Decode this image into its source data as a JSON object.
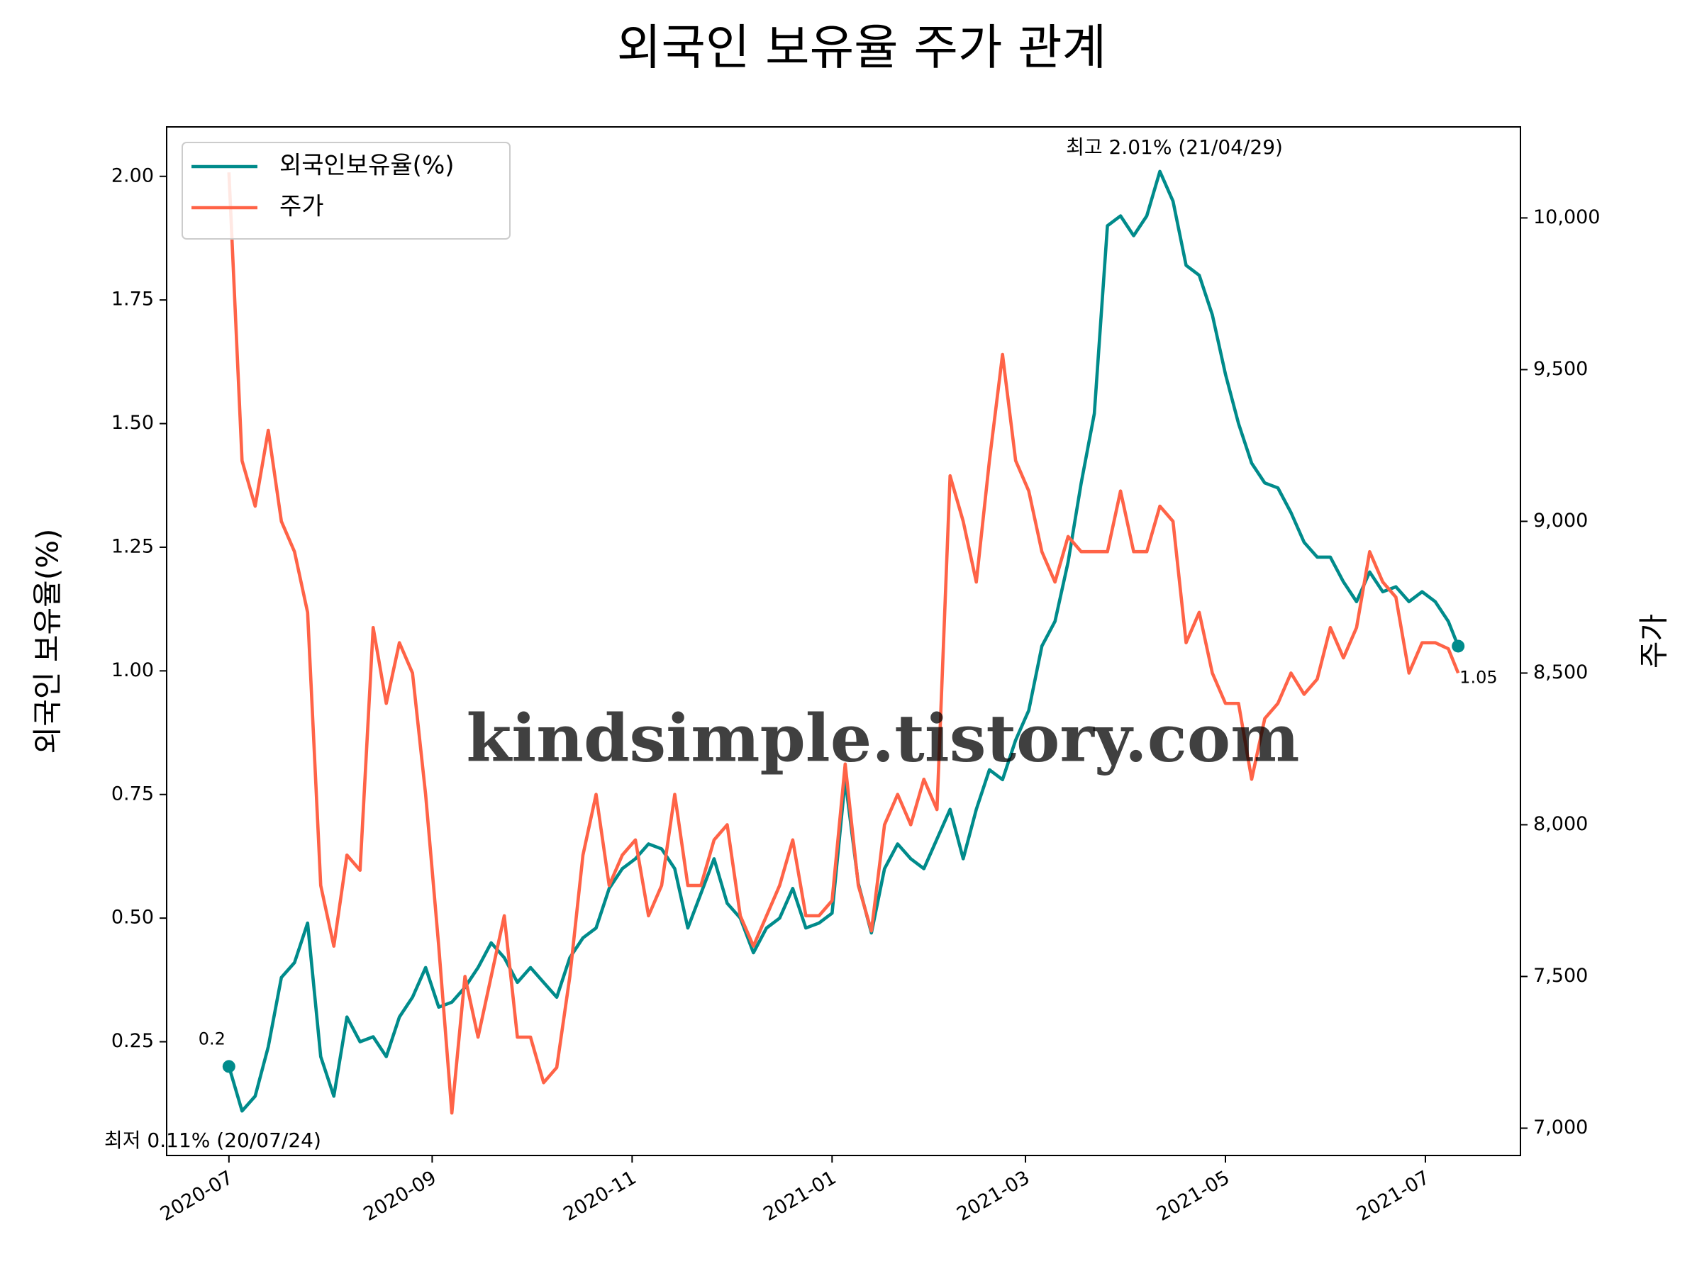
{
  "chart_data": {
    "type": "line",
    "title": "외국인 보유율 주가 관계",
    "ylabel": "외국인 보유율(%)",
    "y2label": "주가",
    "legend": "upper left",
    "grid": false,
    "x": [
      "2020-07-01",
      "2020-07-05",
      "2020-07-09",
      "2020-07-13",
      "2020-07-17",
      "2020-07-21",
      "2020-07-25",
      "2020-07-29",
      "2020-08-02",
      "2020-08-06",
      "2020-08-10",
      "2020-08-14",
      "2020-08-18",
      "2020-08-22",
      "2020-08-26",
      "2020-08-30",
      "2020-09-03",
      "2020-09-07",
      "2020-09-11",
      "2020-09-15",
      "2020-09-19",
      "2020-09-23",
      "2020-09-27",
      "2020-10-01",
      "2020-10-05",
      "2020-10-09",
      "2020-10-13",
      "2020-10-17",
      "2020-10-21",
      "2020-10-25",
      "2020-10-29",
      "2020-11-02",
      "2020-11-06",
      "2020-11-10",
      "2020-11-14",
      "2020-11-18",
      "2020-11-22",
      "2020-11-26",
      "2020-11-30",
      "2020-12-04",
      "2020-12-08",
      "2020-12-12",
      "2020-12-16",
      "2020-12-20",
      "2020-12-24",
      "2020-12-28",
      "2021-01-01",
      "2021-01-05",
      "2021-01-09",
      "2021-01-13",
      "2021-01-17",
      "2021-01-21",
      "2021-01-25",
      "2021-01-29",
      "2021-02-02",
      "2021-02-06",
      "2021-02-10",
      "2021-02-14",
      "2021-02-18",
      "2021-02-22",
      "2021-02-26",
      "2021-03-02",
      "2021-03-06",
      "2021-03-10",
      "2021-03-14",
      "2021-03-18",
      "2021-03-22",
      "2021-03-26",
      "2021-03-30",
      "2021-04-03",
      "2021-04-07",
      "2021-04-11",
      "2021-04-15",
      "2021-04-19",
      "2021-04-23",
      "2021-04-27",
      "2021-05-01",
      "2021-05-05",
      "2021-05-09",
      "2021-05-13",
      "2021-05-17",
      "2021-05-21",
      "2021-05-25",
      "2021-05-29",
      "2021-06-02",
      "2021-06-06",
      "2021-06-10",
      "2021-06-14",
      "2021-06-18",
      "2021-06-22",
      "2021-06-26",
      "2021-06-30",
      "2021-07-04",
      "2021-07-08",
      "2021-07-11"
    ],
    "xlim": [
      "2020-06-12",
      "2021-07-30"
    ],
    "xticks": [
      "2020-07",
      "2020-09",
      "2020-11",
      "2021-01",
      "2021-03",
      "2021-05",
      "2021-07"
    ],
    "ylim": [
      0.02,
      2.1
    ],
    "yticks": [
      {
        "value": 0.25,
        "label": "0.25"
      },
      {
        "value": 0.5,
        "label": "0.50"
      },
      {
        "value": 0.75,
        "label": "0.75"
      },
      {
        "value": 1,
        "label": "1.00"
      },
      {
        "value": 1.25,
        "label": "1.25"
      },
      {
        "value": 1.5,
        "label": "1.50"
      },
      {
        "value": 1.75,
        "label": "1.75"
      },
      {
        "value": 2,
        "label": "2.00"
      }
    ],
    "y2lim": [
      6910,
      10300
    ],
    "y2ticks": [
      {
        "value": 7000,
        "label": "7,000"
      },
      {
        "value": 7500,
        "label": "7,500"
      },
      {
        "value": 8000,
        "label": "8,000"
      },
      {
        "value": 8500,
        "label": "8,500"
      },
      {
        "value": 9000,
        "label": "9,000"
      },
      {
        "value": 9500,
        "label": "9,500"
      },
      {
        "value": 10000,
        "label": "10,000"
      }
    ],
    "series": [
      {
        "name": "외국인보유율(%)",
        "color": "#008b8b",
        "values": [
          0.2,
          0.11,
          0.14,
          0.24,
          0.38,
          0.41,
          0.49,
          0.22,
          0.14,
          0.3,
          0.25,
          0.26,
          0.22,
          0.3,
          0.34,
          0.4,
          0.32,
          0.33,
          0.36,
          0.4,
          0.45,
          0.42,
          0.37,
          0.4,
          0.37,
          0.34,
          0.42,
          0.46,
          0.48,
          0.56,
          0.6,
          0.62,
          0.65,
          0.64,
          0.6,
          0.48,
          0.55,
          0.62,
          0.53,
          0.5,
          0.43,
          0.48,
          0.5,
          0.56,
          0.48,
          0.49,
          0.51,
          0.78,
          0.57,
          0.47,
          0.6,
          0.65,
          0.62,
          0.6,
          0.66,
          0.72,
          0.62,
          0.72,
          0.8,
          0.78,
          0.86,
          0.92,
          1.05,
          1.1,
          1.22,
          1.38,
          1.52,
          1.9,
          1.92,
          1.88,
          1.92,
          2.01,
          1.95,
          1.82,
          1.8,
          1.72,
          1.6,
          1.5,
          1.42,
          1.38,
          1.37,
          1.32,
          1.26,
          1.23,
          1.23,
          1.18,
          1.14,
          1.2,
          1.16,
          1.17,
          1.14,
          1.16,
          1.14,
          1.1,
          1.05
        ]
      },
      {
        "name": "주가",
        "color": "#ff6347",
        "axis": "y2",
        "values": [
          10150,
          9200,
          9050,
          9300,
          9000,
          8900,
          8700,
          7800,
          7600,
          7900,
          7850,
          8650,
          8400,
          8600,
          8500,
          8100,
          7600,
          7050,
          7500,
          7300,
          7500,
          7700,
          7300,
          7300,
          7150,
          7200,
          7500,
          7900,
          8100,
          7800,
          7900,
          7950,
          7700,
          7800,
          8100,
          7800,
          7800,
          7950,
          8000,
          7700,
          7600,
          7700,
          7800,
          7950,
          7700,
          7700,
          7750,
          8200,
          7800,
          7650,
          8000,
          8100,
          8000,
          8150,
          8050,
          9150,
          9000,
          8800,
          9200,
          9550,
          9200,
          9100,
          8900,
          8800,
          8950,
          8900,
          8900,
          8900,
          9100,
          8900,
          8900,
          9050,
          9000,
          8600,
          8700,
          8500,
          8400,
          8400,
          8150,
          8350,
          8400,
          8500,
          8430,
          8480,
          8650,
          8550,
          8650,
          8900,
          8800,
          8750,
          8500,
          8600,
          8600,
          8580,
          8500
        ]
      }
    ],
    "annotations": [
      {
        "text": "최저 0.11% (20/07/24)",
        "color": "#0000ff"
      },
      {
        "text": "최고 2.01% (21/04/29)",
        "color": "#ff0000"
      }
    ],
    "watermark": "kindsimple.tistory.com"
  }
}
